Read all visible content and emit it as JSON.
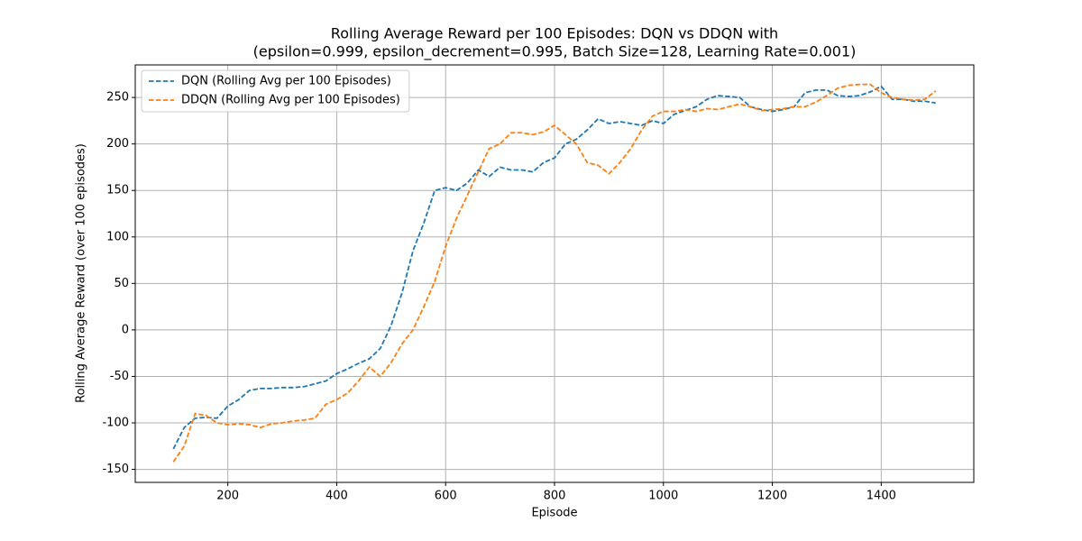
{
  "chart_data": {
    "type": "line",
    "title": [
      "Rolling Average Reward per 100 Episodes: DQN vs DDQN with",
      "(epsilon=0.999, epsilon_decrement=0.995, Batch Size=128, Learning Rate=0.001)"
    ],
    "x_label": "Episode",
    "y_label": "Rolling Average Reward (over 100 episodes)",
    "x": [
      100,
      120,
      140,
      160,
      180,
      200,
      220,
      240,
      260,
      280,
      300,
      320,
      340,
      360,
      380,
      400,
      420,
      440,
      460,
      480,
      500,
      520,
      540,
      560,
      580,
      600,
      620,
      640,
      660,
      680,
      700,
      720,
      740,
      760,
      780,
      800,
      820,
      840,
      860,
      880,
      900,
      920,
      940,
      960,
      980,
      1000,
      1020,
      1040,
      1060,
      1080,
      1100,
      1120,
      1140,
      1160,
      1180,
      1200,
      1220,
      1240,
      1260,
      1280,
      1300,
      1320,
      1340,
      1360,
      1380,
      1400,
      1420,
      1440,
      1460,
      1480,
      1500
    ],
    "series": [
      {
        "name": "DQN (Rolling Avg per 100 Episodes)",
        "color": "#1f77b4",
        "values": [
          -128,
          -105,
          -95,
          -94,
          -95,
          -82,
          -75,
          -65,
          -63,
          -63,
          -62,
          -62,
          -61,
          -58,
          -55,
          -47,
          -42,
          -36,
          -31,
          -20,
          5,
          40,
          85,
          115,
          150,
          153,
          150,
          158,
          172,
          165,
          175,
          172,
          172,
          170,
          180,
          185,
          200,
          205,
          215,
          227,
          222,
          224,
          222,
          220,
          225,
          222,
          232,
          236,
          240,
          248,
          252,
          251,
          250,
          240,
          237,
          235,
          237,
          240,
          255,
          258,
          258,
          252,
          251,
          252,
          256,
          262,
          248,
          248,
          246,
          246,
          244
        ]
      },
      {
        "name": "DDQN (Rolling Avg per 100 Episodes)",
        "color": "#ff7f0e",
        "values": [
          -142,
          -125,
          -90,
          -92,
          -100,
          -102,
          -101,
          -102,
          -105,
          -101,
          -100,
          -98,
          -97,
          -95,
          -80,
          -75,
          -68,
          -55,
          -40,
          -50,
          -35,
          -15,
          0,
          25,
          52,
          90,
          120,
          145,
          170,
          195,
          200,
          212,
          212,
          210,
          213,
          220,
          210,
          200,
          180,
          177,
          168,
          180,
          195,
          215,
          230,
          235,
          235,
          237,
          235,
          238,
          237,
          240,
          243,
          240,
          236,
          237,
          238,
          240,
          240,
          245,
          252,
          260,
          263,
          264,
          264,
          255,
          250,
          248,
          247,
          248,
          257
        ]
      }
    ],
    "xlim": [
      30,
      1570
    ],
    "ylim": [
      -164,
      285
    ],
    "xticks": [
      200,
      400,
      600,
      800,
      1000,
      1200,
      1400
    ],
    "yticks": [
      -150,
      -100,
      -50,
      0,
      50,
      100,
      150,
      200,
      250
    ],
    "grid": true,
    "legend": "upper-left",
    "dashed": true
  }
}
